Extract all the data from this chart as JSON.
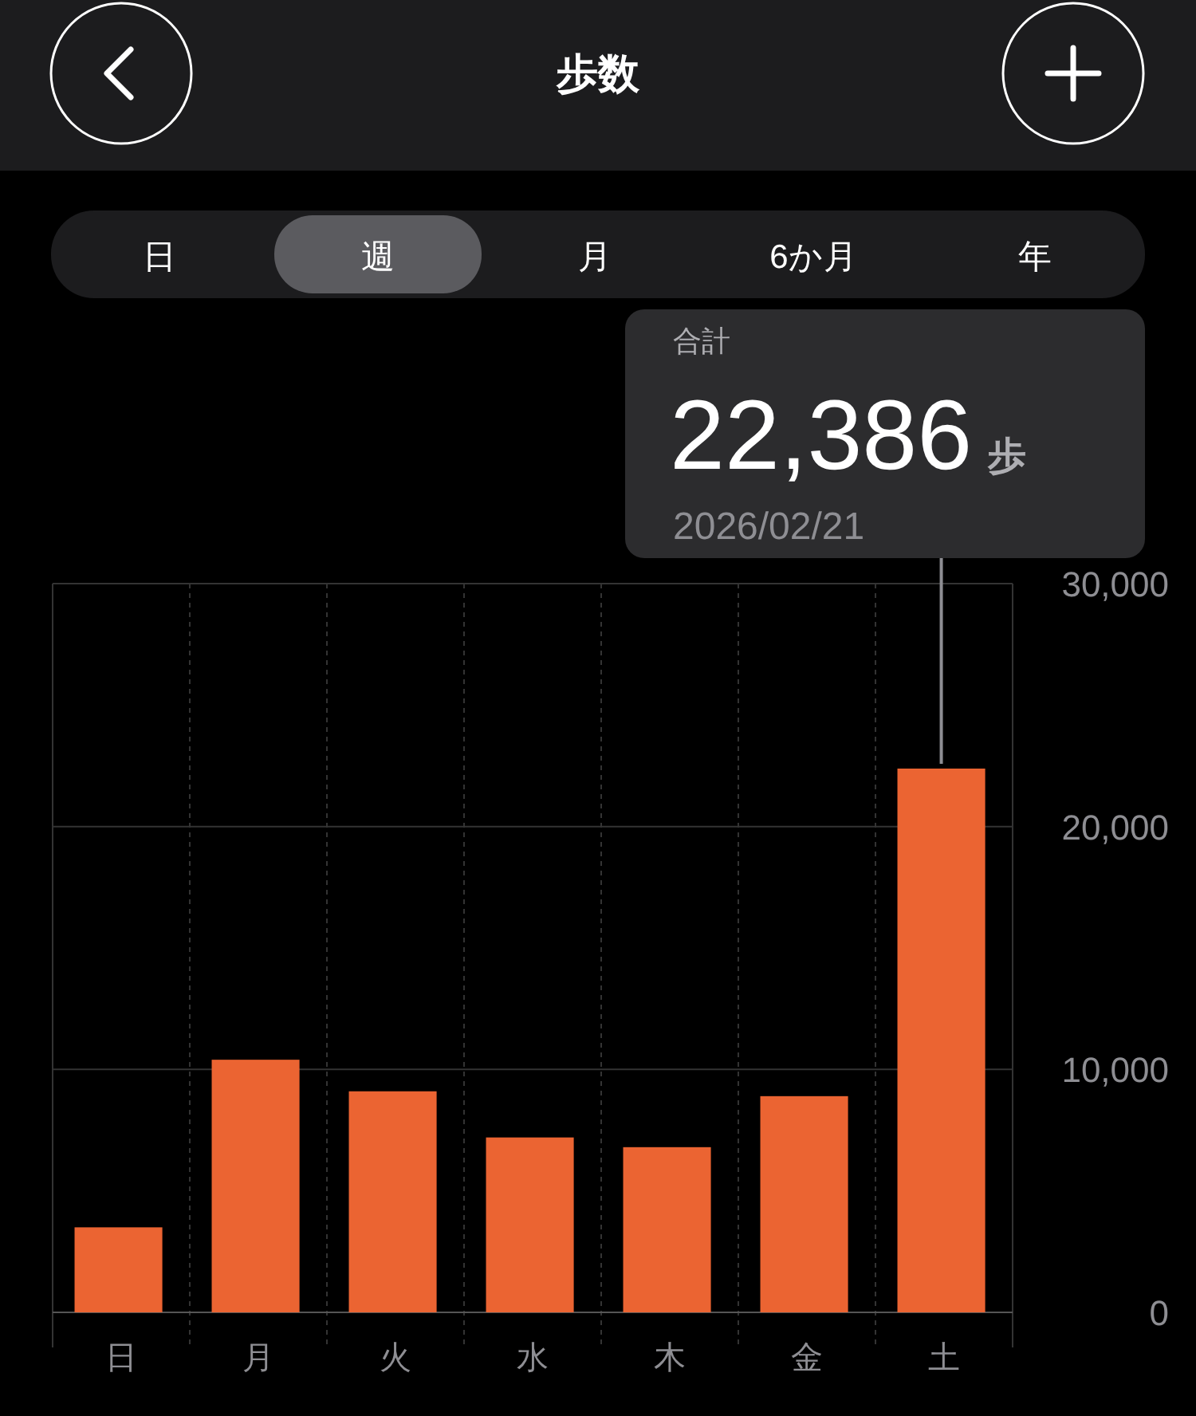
{
  "chart_data": {
    "type": "bar",
    "title": "歩数",
    "categories": [
      "日",
      "月",
      "火",
      "水",
      "木",
      "金",
      "土"
    ],
    "values": [
      3500,
      10400,
      9100,
      7200,
      6800,
      8900,
      22386
    ],
    "color": "#eb6432",
    "ylim": [
      0,
      30000
    ],
    "yticks": [
      0,
      {
        "value": 10000,
        "label": "10,000"
      },
      {
        "value": 20000,
        "label": "20,000"
      },
      {
        "value": 30000,
        "label": "30,000"
      }
    ],
    "grid": true,
    "annotations": [
      "日",
      "週",
      "月",
      "6か月",
      "年",
      "合計",
      {
        "text": "22,386 歩",
        "x": "土",
        "y": 22386
      },
      "2026/02/21"
    ]
  }
}
